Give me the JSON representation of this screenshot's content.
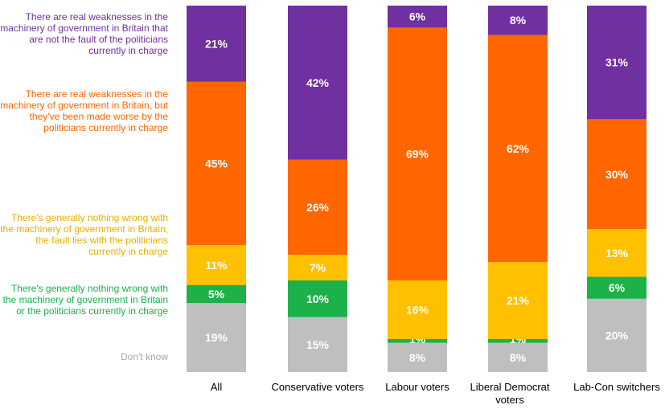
{
  "chart_data": {
    "type": "bar",
    "stacked": true,
    "orientation": "vertical",
    "title": "",
    "xlabel": "",
    "ylabel": "",
    "ylim": [
      0,
      100
    ],
    "grid": false,
    "legend_placement": "left",
    "categories": [
      "All",
      "Conservative voters",
      "Labour voters",
      "Liberal Democrat voters",
      "Lab-Con switchers"
    ],
    "series": [
      {
        "name": "Don't know",
        "color": "#bfbfbf",
        "values": [
          19,
          15,
          8,
          8,
          20
        ],
        "labels": [
          "19%",
          "15%",
          "8%",
          "8%",
          "20%"
        ]
      },
      {
        "name": "There's generally nothing wrong with the machinery of government in Britain or the politicians currently in charge",
        "color": "#1db14a",
        "values": [
          5,
          10,
          1,
          1,
          6
        ],
        "labels": [
          "5%",
          "10%",
          "1%",
          "1%",
          "6%"
        ]
      },
      {
        "name": "There's generally nothing wrong with the machinery of government in Britain, the fault lies with the politicians currently in charge",
        "color": "#ffc000",
        "values": [
          11,
          7,
          16,
          21,
          13
        ],
        "labels": [
          "11%",
          "7%",
          "16%",
          "21%",
          "13%"
        ]
      },
      {
        "name": "There are real weaknesses in the machinery of government in Britain, but they've been made worse by the politicians currently in charge",
        "color": "#ff6600",
        "values": [
          45,
          26,
          69,
          62,
          30
        ],
        "labels": [
          "45%",
          "26%",
          "69%",
          "62%",
          "30%"
        ]
      },
      {
        "name": "There are real weaknesses in the machinery of government in Britain that are not the fault of the politicians currently in charge",
        "color": "#7030a0",
        "values": [
          21,
          42,
          6,
          8,
          31
        ],
        "labels": [
          "21%",
          "42%",
          "6%",
          "8%",
          "31%"
        ]
      }
    ]
  },
  "legend": [
    {
      "text": "There are real weaknesses in the machinery of government in Britain that are not the fault of the politicians currently in charge",
      "color": "#7030a0"
    },
    {
      "text": "There are real weaknesses in the machinery of government in Britain, but they've been made worse by the politicians currently in charge",
      "color": "#ff6600"
    },
    {
      "text": "There's generally nothing wrong with the machinery of government in Britain, the fault lies with the politicians currently in charge",
      "color": "#e6b000"
    },
    {
      "text": "There's generally nothing wrong with the machinery of government in Britain or the politicians currently in charge",
      "color": "#1db14a"
    },
    {
      "text": "Don't know",
      "color": "#a6a6a6"
    }
  ]
}
